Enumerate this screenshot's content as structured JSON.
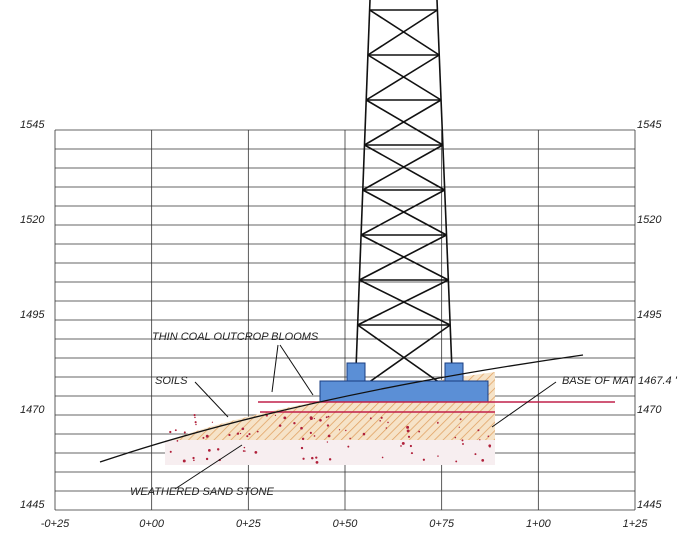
{
  "axes": {
    "left": [
      "1545",
      "1520",
      "1495",
      "1470",
      "1445"
    ],
    "right": [
      "1545",
      "1520",
      "1495",
      "1470",
      "1445"
    ],
    "bottom": [
      "-0+25",
      "0+00",
      "0+25",
      "0+50",
      "0+75",
      "1+00",
      "1+25"
    ]
  },
  "annotations": {
    "coal": "THIN COAL OUTCROP BLOOMS",
    "soils": "SOILS",
    "mat": "BASE OF MAT 1467.4 '",
    "sandstone": "WEATHERED SAND STONE"
  }
}
